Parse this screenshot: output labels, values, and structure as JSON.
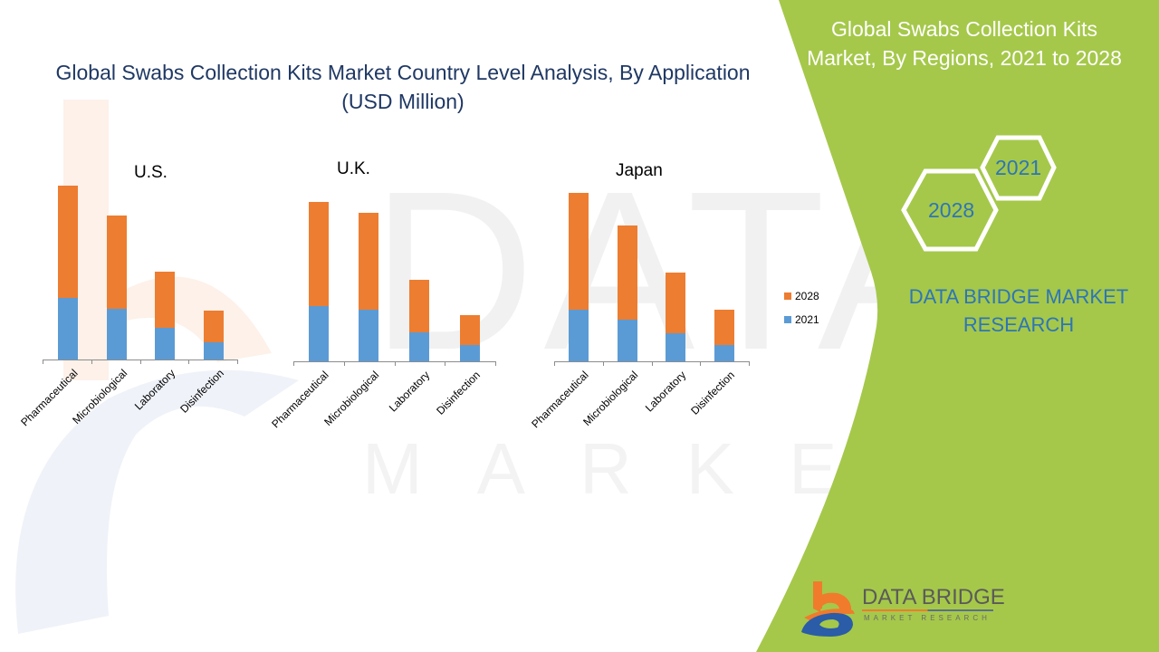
{
  "header": {
    "title_line1": "Global Swabs Collection Kits Market Country Level Analysis, By Application",
    "title_line2": "(USD Million)"
  },
  "side_panel": {
    "title_line1": "Global Swabs Collection Kits",
    "title_line2": "Market, By Regions, 2021 to 2028",
    "hex_2028": "2028",
    "hex_2021": "2021",
    "brand_line1": "DATA BRIDGE MARKET",
    "brand_line2": "RESEARCH",
    "logo_main": "DATA BRIDGE",
    "logo_sub": "MARKET RESEARCH"
  },
  "colors": {
    "series_2028": "#ed7d31",
    "series_2021": "#5b9bd5",
    "panel_green": "#a5c84a",
    "title_navy": "#1f3864",
    "brand_blue": "#2e75b6"
  },
  "legend": [
    {
      "label": "2028",
      "color": "#ed7d31"
    },
    {
      "label": "2021",
      "color": "#5b9bd5"
    }
  ],
  "chart_data": [
    {
      "type": "bar",
      "stacked": true,
      "title": "U.S.",
      "categories": [
        "Pharmaceutical",
        "Microbiological",
        "Laboratory",
        "Disinfection"
      ],
      "series": [
        {
          "name": "2021",
          "values": [
            68,
            56,
            35,
            19
          ]
        },
        {
          "name": "2028",
          "values": [
            124,
            103,
            62,
            35
          ]
        }
      ],
      "xlabel": "",
      "ylabel": "USD Million (relative, no axis shown)",
      "grid": false,
      "legend_position": "right"
    },
    {
      "type": "bar",
      "stacked": true,
      "title": "U.K.",
      "categories": [
        "Pharmaceutical",
        "Microbiological",
        "Laboratory",
        "Disinfection"
      ],
      "series": [
        {
          "name": "2021",
          "values": [
            61,
            57,
            32,
            18
          ]
        },
        {
          "name": "2028",
          "values": [
            115,
            107,
            58,
            33
          ]
        }
      ],
      "xlabel": "",
      "ylabel": "USD Million (relative, no axis shown)",
      "grid": false,
      "legend_position": "right"
    },
    {
      "type": "bar",
      "stacked": true,
      "title": "Japan",
      "categories": [
        "Pharmaceutical",
        "Microbiological",
        "Laboratory",
        "Disinfection"
      ],
      "series": [
        {
          "name": "2021",
          "values": [
            57,
            46,
            31,
            18
          ]
        },
        {
          "name": "2028",
          "values": [
            129,
            104,
            67,
            39
          ]
        }
      ],
      "xlabel": "",
      "ylabel": "USD Million (relative, no axis shown)",
      "grid": false,
      "legend_position": "right"
    }
  ]
}
